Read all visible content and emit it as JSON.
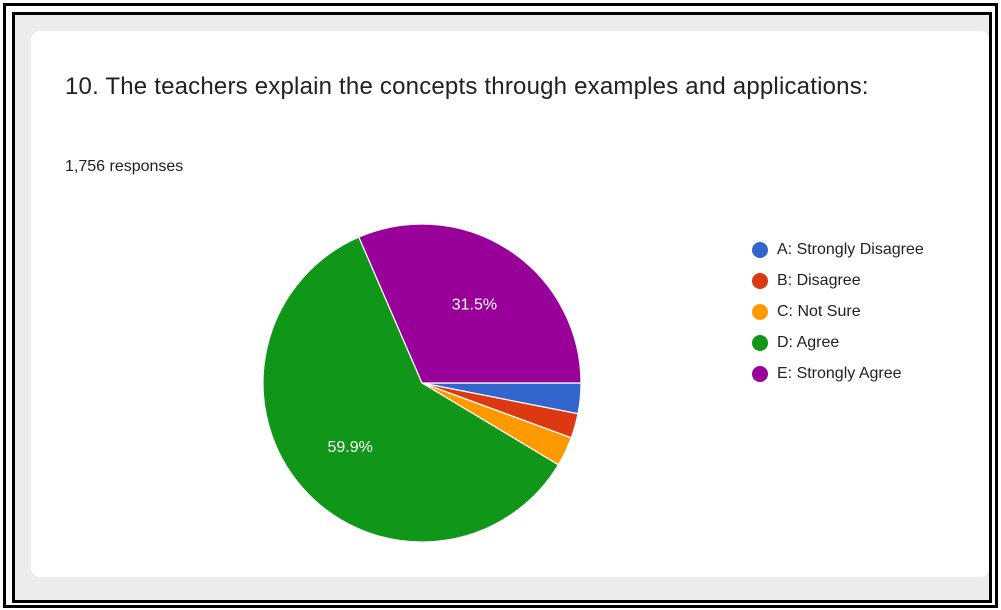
{
  "question": {
    "title": "10. The teachers explain the concepts through examples and applications:",
    "responses": "1,756 responses"
  },
  "chart_data": {
    "type": "pie",
    "title": "10. The teachers explain the concepts through examples and applications:",
    "categories": [
      "A: Strongly Disagree",
      "B: Disagree",
      "C: Not Sure",
      "D: Agree",
      "E: Strongly Agree"
    ],
    "values": [
      3.1,
      2.5,
      3.0,
      59.9,
      31.5
    ],
    "data_labels": [
      "",
      "",
      "",
      "59.9%",
      "31.5%"
    ],
    "colors": [
      "#3366cc",
      "#dc3912",
      "#ff9900",
      "#109618",
      "#990099"
    ],
    "legend_position": "right"
  }
}
